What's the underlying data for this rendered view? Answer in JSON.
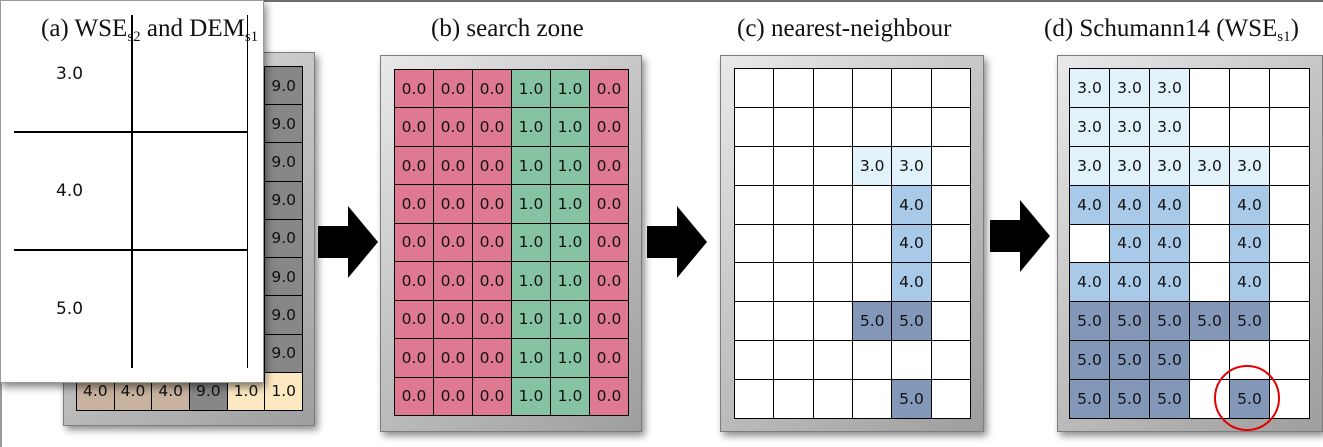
{
  "titles": {
    "a_main": "(a) WSE",
    "a_sub1": "s2",
    "a_mid": " and DEM",
    "a_sub2": "s1",
    "b": "(b) search zone",
    "c": "(c) nearest-neighbour",
    "d_main": "(d) Schumann14 (WSE",
    "d_sub": "s1",
    "d_close": ")"
  },
  "colors": {
    "red_zone": "#df7891",
    "green_zone": "#86c3a2",
    "light_blue": "#e2f2fb",
    "mid_blue": "#a9c9e8",
    "dark_blue": "#8397b8",
    "dem_brown": "#c8b39f",
    "dem_grey": "#878787",
    "dem_cream": "#fce9c2",
    "highlight_circle": "#e30000"
  },
  "panel_a": {
    "front_values": [
      "3.0",
      "4.0",
      "5.0"
    ],
    "back_right_values": [
      "9.0",
      "9.0",
      "9.0",
      "9.0",
      "9.0",
      "9.0",
      "9.0",
      "9.0"
    ],
    "back_bottom_row": [
      "4.0",
      "4.0",
      "4.0",
      "9.0",
      "1.0",
      "1.0"
    ]
  },
  "panel_b": {
    "rows": [
      [
        "0.0",
        "0.0",
        "0.0",
        "1.0",
        "1.0",
        "0.0"
      ],
      [
        "0.0",
        "0.0",
        "0.0",
        "1.0",
        "1.0",
        "0.0"
      ],
      [
        "0.0",
        "0.0",
        "0.0",
        "1.0",
        "1.0",
        "0.0"
      ],
      [
        "0.0",
        "0.0",
        "0.0",
        "1.0",
        "1.0",
        "0.0"
      ],
      [
        "0.0",
        "0.0",
        "0.0",
        "1.0",
        "1.0",
        "0.0"
      ],
      [
        "0.0",
        "0.0",
        "0.0",
        "1.0",
        "1.0",
        "0.0"
      ],
      [
        "0.0",
        "0.0",
        "0.0",
        "1.0",
        "1.0",
        "0.0"
      ],
      [
        "0.0",
        "0.0",
        "0.0",
        "1.0",
        "1.0",
        "0.0"
      ],
      [
        "0.0",
        "0.0",
        "0.0",
        "1.0",
        "1.0",
        "0.0"
      ]
    ]
  },
  "panel_c": {
    "rows": [
      [
        "",
        "",
        "",
        "",
        "",
        ""
      ],
      [
        "",
        "",
        "",
        "",
        "",
        ""
      ],
      [
        "",
        "",
        "",
        "3.0",
        "3.0",
        ""
      ],
      [
        "",
        "",
        "",
        "",
        "4.0",
        ""
      ],
      [
        "",
        "",
        "",
        "",
        "4.0",
        ""
      ],
      [
        "",
        "",
        "",
        "",
        "4.0",
        ""
      ],
      [
        "",
        "",
        "",
        "5.0",
        "5.0",
        ""
      ],
      [
        "",
        "",
        "",
        "",
        "",
        ""
      ],
      [
        "",
        "",
        "",
        "",
        "5.0",
        ""
      ]
    ]
  },
  "panel_d": {
    "rows": [
      [
        "3.0",
        "3.0",
        "3.0",
        "",
        "",
        ""
      ],
      [
        "3.0",
        "3.0",
        "3.0",
        "",
        "",
        ""
      ],
      [
        "3.0",
        "3.0",
        "3.0",
        "3.0",
        "3.0",
        ""
      ],
      [
        "4.0",
        "4.0",
        "4.0",
        "",
        "4.0",
        ""
      ],
      [
        "",
        "4.0",
        "4.0",
        "",
        "4.0",
        ""
      ],
      [
        "4.0",
        "4.0",
        "4.0",
        "",
        "4.0",
        ""
      ],
      [
        "5.0",
        "5.0",
        "5.0",
        "5.0",
        "5.0",
        ""
      ],
      [
        "5.0",
        "5.0",
        "5.0",
        "",
        "",
        ""
      ],
      [
        "5.0",
        "5.0",
        "5.0",
        "",
        "5.0",
        ""
      ]
    ]
  }
}
